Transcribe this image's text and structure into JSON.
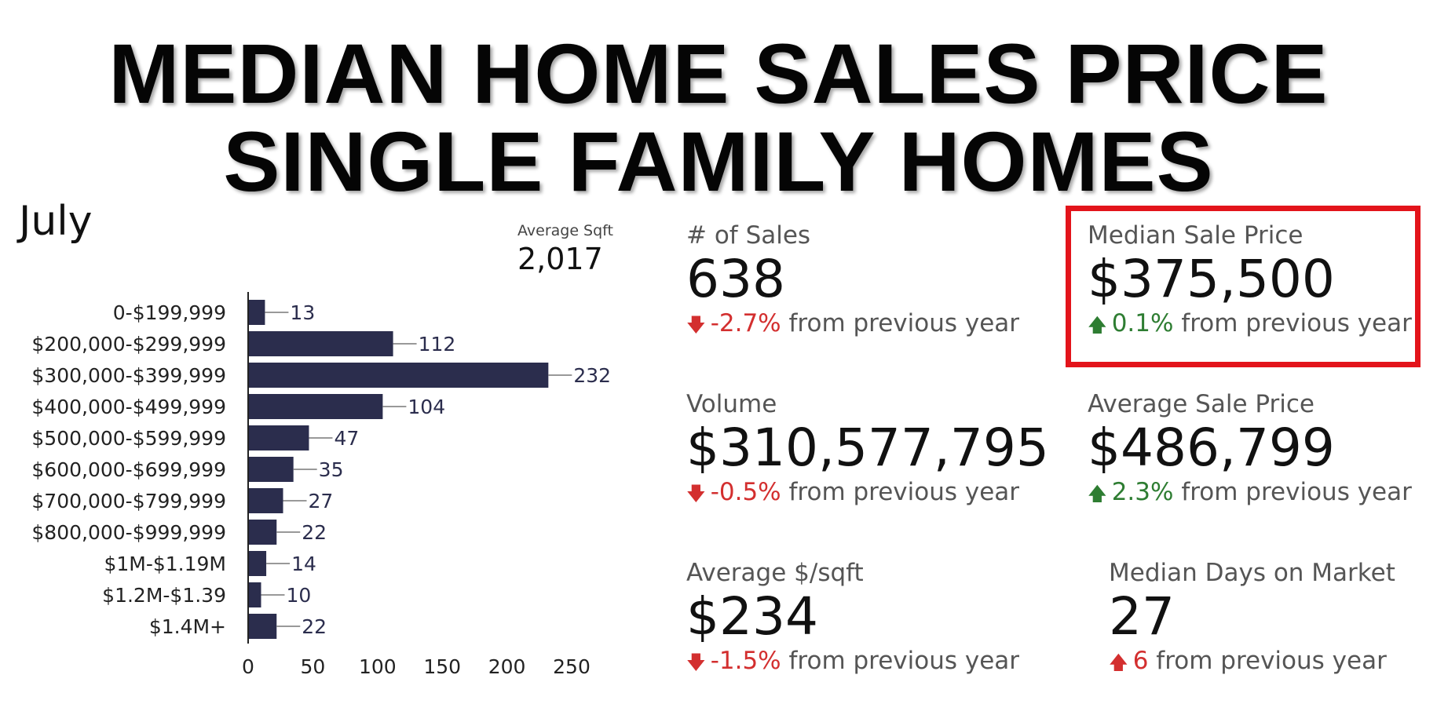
{
  "title": {
    "line1": "MEDIAN HOME SALES PRICE",
    "line2": "SINGLE FAMILY HOMES"
  },
  "month": "July",
  "average_sqft": {
    "label": "Average Sqft",
    "value": "2,017"
  },
  "chart_data": {
    "type": "bar",
    "orientation": "horizontal",
    "categories": [
      "0-$199,999",
      "$200,000-$299,999",
      "$300,000-$399,999",
      "$400,000-$499,999",
      "$500,000-$599,999",
      "$600,000-$699,999",
      "$700,000-$799,999",
      "$800,000-$999,999",
      "$1M-$1.19M",
      "$1.2M-$1.39",
      "$1.4M+"
    ],
    "values": [
      13,
      112,
      232,
      104,
      47,
      35,
      27,
      22,
      14,
      10,
      22
    ],
    "xlim": [
      0,
      250
    ],
    "xticks": [
      0,
      50,
      100,
      150,
      200,
      250
    ],
    "bar_color": "#2b2d4d",
    "data_labels": true
  },
  "kpis": {
    "sales": {
      "label": "# of Sales",
      "value": "638",
      "change": "-2.7%",
      "suffix": "from previous year",
      "direction": "down"
    },
    "median_price": {
      "label": "Median Sale Price",
      "value": "$375,500",
      "change": "0.1%",
      "suffix": "from previous year",
      "direction": "up"
    },
    "volume": {
      "label": "Volume",
      "value": "$310,577,795",
      "change": "-0.5%",
      "suffix": "from previous year",
      "direction": "down"
    },
    "avg_price": {
      "label": "Average Sale Price",
      "value": "$486,799",
      "change": "2.3%",
      "suffix": "from previous year",
      "direction": "up"
    },
    "avg_sqft_price": {
      "label": "Average $/sqft",
      "value": "$234",
      "change": "-1.5%",
      "suffix": "from previous year",
      "direction": "down"
    },
    "days_on_market": {
      "label": "Median Days on Market",
      "value": "27",
      "change": "6",
      "suffix": "from previous year",
      "direction": "up-bad"
    }
  },
  "colors": {
    "down": "#d32f2f",
    "up": "#2e7d32",
    "highlight": "#e3141b"
  }
}
